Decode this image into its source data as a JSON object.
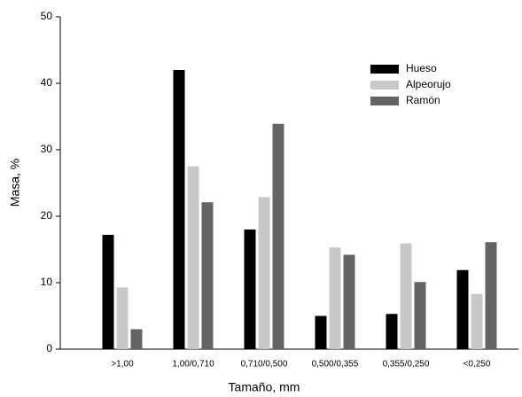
{
  "chart_data": {
    "type": "bar",
    "xlabel": "Tamaño, mm",
    "ylabel": "Masa, %",
    "categories": [
      ">1,00",
      "1,00/0,710",
      "0,710/0,500",
      "0,500/0,355",
      "0,355/0,250",
      "<0,250"
    ],
    "series": [
      {
        "name": "Hueso",
        "color": "#000000",
        "values": [
          17.2,
          42.0,
          18.0,
          5.0,
          5.3,
          11.9
        ]
      },
      {
        "name": "Alpeorujo",
        "color": "#c8c8c8",
        "values": [
          9.3,
          27.5,
          22.9,
          15.3,
          15.9,
          8.3
        ]
      },
      {
        "name": "Ramón",
        "color": "#646464",
        "values": [
          3.0,
          22.1,
          33.9,
          14.2,
          10.1,
          16.1
        ]
      }
    ],
    "ylim": [
      0,
      50
    ],
    "yticks": [
      0,
      10,
      20,
      30,
      40,
      50
    ],
    "grid": false,
    "legend": "upper right"
  }
}
